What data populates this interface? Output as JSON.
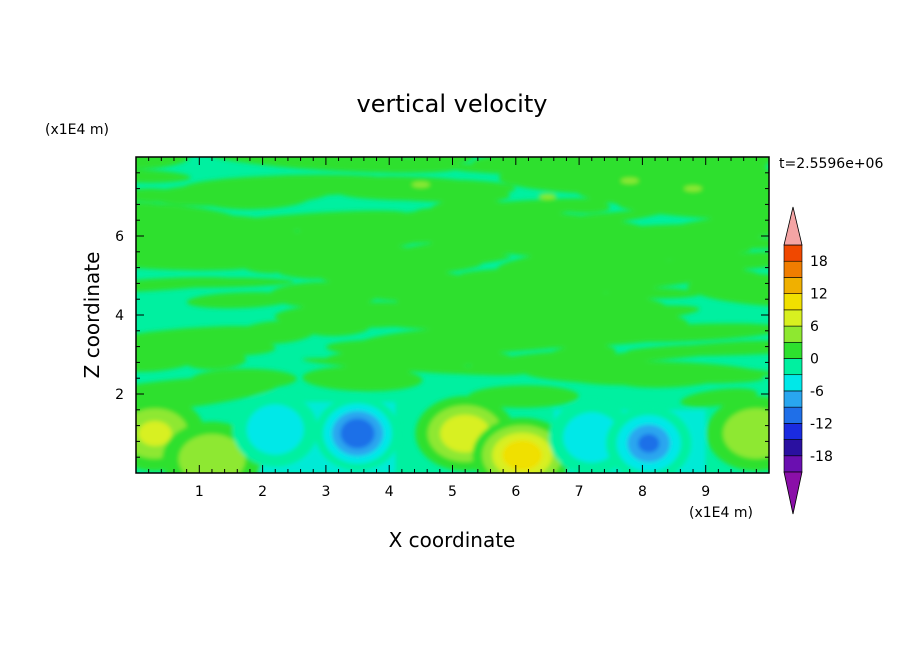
{
  "chart_data": {
    "type": "heatmap",
    "title": "vertical velocity",
    "xlabel": "X coordinate",
    "ylabel": "Z coordinate",
    "x_unit": "(x1E4 m)",
    "y_unit": "(x1E4 m)",
    "time_label": "t=2.5596e+06",
    "xlim": [
      0,
      10
    ],
    "ylim": [
      0,
      8
    ],
    "x_ticks": [
      1,
      2,
      3,
      4,
      5,
      6,
      7,
      8,
      9
    ],
    "y_ticks": [
      2,
      4,
      6
    ],
    "grid": false,
    "colorbar": {
      "position": "right",
      "levels": [
        -21,
        -18,
        -15,
        -12,
        -9,
        -6,
        -3,
        0,
        3,
        6,
        9,
        12,
        15,
        18,
        21
      ],
      "tick_labels": [
        "18",
        "12",
        "6",
        "0",
        "-6",
        "-12",
        "-18"
      ],
      "tick_values": [
        18,
        12,
        6,
        0,
        -6,
        -12,
        -18
      ],
      "colors": [
        "#6a0fb0",
        "#2a10a0",
        "#1a2be0",
        "#1f6fe8",
        "#29a6ef",
        "#00e8e8",
        "#00f0a0",
        "#2ee02e",
        "#8ee830",
        "#d8f020",
        "#f0e000",
        "#f0b000",
        "#f07d00",
        "#f04800",
        "#e81010"
      ],
      "over_color": "#f4a4a4",
      "under_color": "#8a0fa8"
    },
    "features": [
      {
        "kind": "updraft",
        "x": 0.3,
        "z": 1.0,
        "peak": 6
      },
      {
        "kind": "updraft",
        "x": 1.2,
        "z": 0.35,
        "peak": 4
      },
      {
        "kind": "downdraft",
        "x": 2.2,
        "z": 1.1,
        "peak": -4
      },
      {
        "kind": "downdraft",
        "x": 3.5,
        "z": 1.0,
        "peak": -11
      },
      {
        "kind": "updraft",
        "x": 5.2,
        "z": 1.0,
        "peak": 7
      },
      {
        "kind": "updraft",
        "x": 6.1,
        "z": 0.45,
        "peak": 10
      },
      {
        "kind": "downdraft",
        "x": 7.2,
        "z": 0.9,
        "peak": -4
      },
      {
        "kind": "downdraft",
        "x": 8.1,
        "z": 0.75,
        "peak": -9
      },
      {
        "kind": "updraft",
        "x": 9.8,
        "z": 1.0,
        "peak": 5
      }
    ]
  }
}
